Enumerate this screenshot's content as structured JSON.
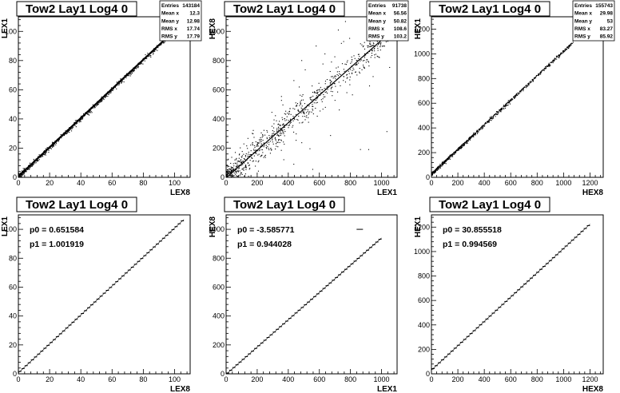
{
  "chart_data": [
    {
      "type": "scatter",
      "title": "Tow2 Lay1 Log4 0",
      "xlabel": "LEX8",
      "ylabel": "LEX1",
      "xlim": [
        0,
        110
      ],
      "ylim": [
        0,
        110
      ],
      "xticks": [
        0,
        20,
        40,
        60,
        80,
        100
      ],
      "yticks": [
        0,
        20,
        40,
        60,
        80,
        100
      ],
      "stats": [
        {
          "label": "Entries",
          "value": "143184"
        },
        {
          "label": "Mean x",
          "value": "12.3"
        },
        {
          "label": "Mean y",
          "value": "12.98"
        },
        {
          "label": "RMS x",
          "value": "17.74"
        },
        {
          "label": "RMS y",
          "value": "17.79"
        }
      ],
      "trend": {
        "slope": 1.0,
        "intercept": 0.6,
        "xmax": 105
      }
    },
    {
      "type": "scatter",
      "title": "Tow2 Lay1 Log4 0",
      "xlabel": "LEX1",
      "ylabel": "HEX8",
      "xlim": [
        0,
        1100
      ],
      "ylim": [
        0,
        1100
      ],
      "xticks": [
        0,
        200,
        400,
        600,
        800,
        1000
      ],
      "yticks": [
        0,
        200,
        400,
        600,
        800,
        1000
      ],
      "stats": [
        {
          "label": "Entries",
          "value": "91738"
        },
        {
          "label": "Mean x",
          "value": "56.56"
        },
        {
          "label": "Mean y",
          "value": "50.82"
        },
        {
          "label": "RMS x",
          "value": "108.6"
        },
        {
          "label": "RMS y",
          "value": "103.2"
        }
      ],
      "trend": {
        "slope": 0.944,
        "intercept": -3.6,
        "xmax": 1050
      }
    },
    {
      "type": "scatter",
      "title": "Tow2 Lay1 Log4 0",
      "xlabel": "HEX8",
      "ylabel": "HEX1",
      "xlim": [
        0,
        1300
      ],
      "ylim": [
        0,
        1300
      ],
      "xticks": [
        0,
        200,
        400,
        600,
        800,
        1000,
        1200
      ],
      "yticks": [
        0,
        200,
        400,
        600,
        800,
        1000,
        1200
      ],
      "stats": [
        {
          "label": "Entries",
          "value": "155743"
        },
        {
          "label": "Mean x",
          "value": "29.98"
        },
        {
          "label": "Mean y",
          "value": "53"
        },
        {
          "label": "RMS x",
          "value": "83.27"
        },
        {
          "label": "RMS y",
          "value": "85.92"
        }
      ],
      "trend": {
        "slope": 0.9946,
        "intercept": 30.9,
        "xmax": 1070
      }
    },
    {
      "type": "line",
      "title": "Tow2 Lay1 Log4 0",
      "xlabel": "LEX8",
      "ylabel": "LEX1",
      "xlim": [
        0,
        110
      ],
      "ylim": [
        0,
        110
      ],
      "xticks": [
        0,
        20,
        40,
        60,
        80,
        100
      ],
      "yticks": [
        0,
        20,
        40,
        60,
        80,
        100
      ],
      "fit": {
        "p0_text": "p0 = 0.651584",
        "p1_text": "p1 = 1.001919",
        "p0": 0.651584,
        "p1": 1.001919
      },
      "profile_xmax": 106,
      "profile_step": 2
    },
    {
      "type": "line",
      "title": "Tow2 Lay1 Log4 0",
      "xlabel": "LEX1",
      "ylabel": "HEX8",
      "xlim": [
        0,
        1100
      ],
      "ylim": [
        0,
        1100
      ],
      "xticks": [
        0,
        200,
        400,
        600,
        800,
        1000
      ],
      "yticks": [
        0,
        200,
        400,
        600,
        800,
        1000
      ],
      "fit": {
        "p0_text": "p0 = -3.585771",
        "p1_text": "p1 = 0.944028",
        "p0": -3.585771,
        "p1": 0.944028
      },
      "profile_xmax": 1000,
      "profile_step": 20,
      "outlier": {
        "x": 860,
        "y": 1000
      }
    },
    {
      "type": "line",
      "title": "Tow2 Lay1 Log4 0",
      "xlabel": "HEX8",
      "ylabel": "HEX1",
      "xlim": [
        0,
        1300
      ],
      "ylim": [
        0,
        1300
      ],
      "xticks": [
        0,
        200,
        400,
        600,
        800,
        1000,
        1200
      ],
      "yticks": [
        0,
        200,
        400,
        600,
        800,
        1000,
        1200
      ],
      "fit": {
        "p0_text": "p0 = 30.855518",
        "p1_text": "p1 = 0.994569",
        "p0": 30.855518,
        "p1": 0.994569
      },
      "profile_xmax": 1200,
      "profile_step": 24
    }
  ]
}
